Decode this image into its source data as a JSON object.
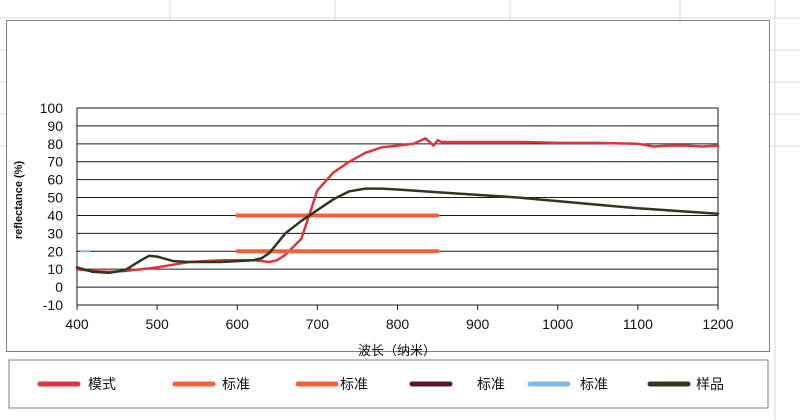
{
  "chart_data": {
    "type": "line",
    "title": "",
    "xlabel": "波长（纳米）",
    "ylabel": "reflectance (%)",
    "xlim": [
      400,
      1200
    ],
    "ylim": [
      -10,
      100
    ],
    "x_ticks": [
      400,
      500,
      600,
      700,
      800,
      900,
      1000,
      1100,
      1200
    ],
    "y_ticks": [
      -10,
      0,
      10,
      20,
      30,
      40,
      50,
      60,
      70,
      80,
      90,
      100
    ],
    "x_tick_labels": [
      "400",
      "500",
      "600",
      "700",
      "800",
      "900",
      "1000",
      "1100",
      "1200"
    ],
    "y_tick_labels": [
      "-10",
      "0",
      "10",
      "20",
      "30",
      "40",
      "50",
      "60",
      "70",
      "80",
      "90",
      "100"
    ],
    "grid": "horizontal",
    "legend_position": "bottom",
    "series": [
      {
        "name": "模式",
        "color": "#d9363e",
        "x": [
          400,
          420,
          440,
          460,
          480,
          500,
          520,
          540,
          560,
          580,
          600,
          620,
          640,
          650,
          660,
          680,
          700,
          720,
          740,
          760,
          780,
          800,
          820,
          835,
          840,
          845,
          850,
          855,
          860,
          880,
          900,
          930,
          960,
          1000,
          1050,
          1100,
          1120,
          1140,
          1160,
          1180,
          1200
        ],
        "y": [
          10,
          9,
          8.5,
          9,
          10,
          11,
          12.5,
          14,
          14.5,
          15,
          15,
          15,
          14,
          15,
          18,
          27,
          54,
          64,
          70,
          75,
          78,
          79,
          80,
          83,
          81,
          79,
          82,
          81,
          81,
          81,
          81,
          81,
          81,
          80.5,
          80.5,
          80,
          78.5,
          79,
          79,
          78.5,
          79
        ]
      },
      {
        "name": "标准",
        "color": "#f0603a",
        "x": [
          600,
          850
        ],
        "y": [
          40,
          40
        ]
      },
      {
        "name": "标准",
        "color": "#f0603a",
        "x": [
          600,
          850
        ],
        "y": [
          20,
          20
        ]
      },
      {
        "name": "标准",
        "color": "#5a1530",
        "x": [],
        "y": []
      },
      {
        "name": "标准",
        "color": "#7fb8e6",
        "x": [
          405,
          410,
          415
        ],
        "y": [
          20,
          20,
          20
        ]
      },
      {
        "name": "样品",
        "color": "#2b3a1e",
        "x": [
          400,
          420,
          440,
          460,
          480,
          490,
          500,
          520,
          540,
          560,
          580,
          600,
          620,
          630,
          640,
          660,
          680,
          700,
          720,
          740,
          760,
          780,
          800,
          850,
          900,
          950,
          1000,
          1050,
          1100,
          1150,
          1200
        ],
        "y": [
          11,
          8.5,
          8,
          9.5,
          15,
          17.5,
          17,
          14.5,
          14,
          14,
          14,
          14.5,
          15,
          16,
          19,
          30,
          37,
          43,
          49,
          53.5,
          55,
          55,
          54.5,
          53,
          51.5,
          50,
          48,
          46,
          44,
          42.5,
          41
        ]
      }
    ]
  }
}
